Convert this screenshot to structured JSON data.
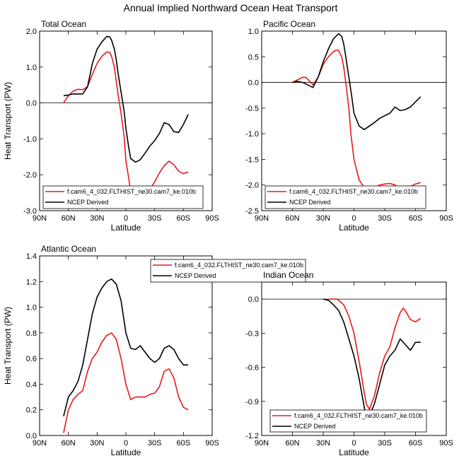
{
  "title": "Annual Implied Northward Ocean Heat Transport",
  "chart_data": [
    {
      "type": "line",
      "title": "Total Ocean",
      "xlabel": "Latitude",
      "ylabel": "Heat Transport (PW)",
      "x_ticks": [
        "90N",
        "60N",
        "30N",
        "0",
        "30S",
        "60S",
        "90S"
      ],
      "y_ticks": [
        "2.0",
        "1.0",
        "0.0",
        "-1.0",
        "-2.0",
        "-3.0"
      ],
      "xlim": [
        90,
        -90
      ],
      "ylim": [
        -3.0,
        2.0
      ],
      "series": [
        {
          "name": "f.cam6_4_032.FLTHIST_ne30.cam7_ke.010b",
          "color": "#e8191c",
          "x": [
            65,
            60,
            55,
            50,
            45,
            40,
            35,
            30,
            25,
            20,
            17,
            15,
            12,
            10,
            8,
            5,
            2,
            0,
            -5,
            -10,
            -13,
            -15,
            -20,
            -25,
            -30,
            -35,
            -40,
            -45,
            -50,
            -55,
            -60,
            -65
          ],
          "y": [
            0.0,
            0.2,
            0.33,
            0.38,
            0.37,
            0.45,
            0.8,
            1.1,
            1.3,
            1.42,
            1.41,
            1.3,
            1.0,
            0.6,
            0.2,
            -0.3,
            -0.9,
            -1.6,
            -2.45,
            -2.76,
            -2.74,
            -2.7,
            -2.55,
            -2.4,
            -2.2,
            -1.95,
            -1.75,
            -1.62,
            -1.72,
            -1.9,
            -1.97,
            -1.92
          ]
        },
        {
          "name": "NCEP Derived",
          "color": "#000000",
          "x": [
            65,
            60,
            55,
            50,
            45,
            40,
            35,
            30,
            25,
            20,
            17,
            15,
            12,
            10,
            8,
            5,
            2,
            0,
            -3,
            -5,
            -10,
            -15,
            -20,
            -25,
            -30,
            -35,
            -40,
            -45,
            -50,
            -55,
            -60,
            -65
          ],
          "y": [
            0.2,
            0.22,
            0.25,
            0.25,
            0.25,
            0.45,
            1.1,
            1.5,
            1.7,
            1.85,
            1.84,
            1.75,
            1.5,
            1.2,
            0.8,
            0.3,
            -0.2,
            -0.7,
            -1.25,
            -1.55,
            -1.65,
            -1.58,
            -1.4,
            -1.2,
            -1.05,
            -0.85,
            -0.55,
            -0.6,
            -0.8,
            -0.82,
            -0.6,
            -0.32
          ]
        }
      ]
    },
    {
      "type": "line",
      "title": "Pacific Ocean",
      "xlabel": "Latitude",
      "ylabel": "",
      "x_ticks": [
        "90N",
        "60N",
        "30N",
        "0",
        "30S",
        "60S",
        "90S"
      ],
      "y_ticks": [
        "1.0",
        "0.5",
        "0.0",
        "-0.5",
        "-1.0",
        "-1.5",
        "-2.0",
        "-2.5"
      ],
      "xlim": [
        90,
        -90
      ],
      "ylim": [
        -2.5,
        1.0
      ],
      "series": [
        {
          "name": "f.cam6_4_032.FLTHIST_ne30.cam7_ke.010b",
          "color": "#e8191c",
          "x": [
            60,
            55,
            50,
            47,
            45,
            42,
            40,
            35,
            30,
            25,
            20,
            17,
            15,
            12,
            10,
            8,
            5,
            3,
            0,
            -5,
            -10,
            -15,
            -20,
            -25,
            -30,
            -35,
            -40,
            -45,
            -50,
            -55,
            -60,
            -65
          ],
          "y": [
            0.0,
            0.05,
            0.1,
            0.1,
            0.06,
            0.0,
            -0.05,
            0.1,
            0.35,
            0.5,
            0.6,
            0.63,
            0.62,
            0.5,
            0.3,
            0.0,
            -0.5,
            -1.0,
            -1.5,
            -1.9,
            -2.05,
            -2.1,
            -2.05,
            -2.0,
            -1.98,
            -1.97,
            -2.0,
            -2.08,
            -2.1,
            -2.03,
            -1.98,
            -1.95
          ]
        },
        {
          "name": "NCEP Derived",
          "color": "#000000",
          "x": [
            60,
            55,
            50,
            45,
            40,
            35,
            30,
            25,
            20,
            15,
            12,
            10,
            8,
            5,
            2,
            0,
            -5,
            -10,
            -15,
            -20,
            -25,
            -30,
            -35,
            -40,
            -45,
            -50,
            -55,
            -60,
            -65
          ],
          "y": [
            0.0,
            0.02,
            0.0,
            -0.05,
            -0.1,
            0.1,
            0.4,
            0.65,
            0.85,
            0.95,
            0.9,
            0.75,
            0.5,
            0.1,
            -0.3,
            -0.6,
            -0.85,
            -0.92,
            -0.85,
            -0.78,
            -0.7,
            -0.65,
            -0.6,
            -0.48,
            -0.55,
            -0.53,
            -0.48,
            -0.38,
            -0.28
          ]
        }
      ]
    },
    {
      "type": "line",
      "title": "Atlantic Ocean",
      "xlabel": "Latitude",
      "ylabel": "Heat Transport (PW)",
      "x_ticks": [
        "90N",
        "60N",
        "30N",
        "0",
        "30S",
        "60S",
        "90S"
      ],
      "y_ticks": [
        "1.4",
        "1.2",
        "1.0",
        "0.8",
        "0.6",
        "0.4",
        "0.2",
        "0.0"
      ],
      "xlim": [
        90,
        -90
      ],
      "ylim": [
        0.0,
        1.4
      ],
      "series": [
        {
          "name": "f.cam6_4_032.FLTHIST_ne30.cam7_ke.010b",
          "color": "#e8191c",
          "x": [
            65,
            60,
            55,
            50,
            45,
            40,
            35,
            30,
            25,
            20,
            15,
            10,
            5,
            0,
            -5,
            -10,
            -15,
            -20,
            -25,
            -30,
            -35,
            -40,
            -45,
            -50,
            -55,
            -60,
            -65
          ],
          "y": [
            0.02,
            0.2,
            0.28,
            0.32,
            0.35,
            0.5,
            0.6,
            0.65,
            0.73,
            0.78,
            0.8,
            0.75,
            0.6,
            0.4,
            0.28,
            0.3,
            0.3,
            0.3,
            0.32,
            0.33,
            0.38,
            0.5,
            0.52,
            0.45,
            0.3,
            0.22,
            0.2
          ]
        },
        {
          "name": "NCEP Derived",
          "color": "#000000",
          "x": [
            65,
            60,
            55,
            50,
            45,
            40,
            35,
            30,
            25,
            20,
            15,
            10,
            5,
            2,
            0,
            -5,
            -10,
            -15,
            -20,
            -25,
            -30,
            -35,
            -40,
            -45,
            -50,
            -55,
            -60,
            -65
          ],
          "y": [
            0.15,
            0.3,
            0.35,
            0.42,
            0.55,
            0.75,
            0.95,
            1.08,
            1.15,
            1.2,
            1.22,
            1.18,
            1.05,
            0.9,
            0.8,
            0.68,
            0.67,
            0.7,
            0.65,
            0.6,
            0.57,
            0.6,
            0.68,
            0.7,
            0.67,
            0.6,
            0.55,
            0.55
          ]
        }
      ]
    },
    {
      "type": "line",
      "title": "Indian Ocean",
      "xlabel": "Latitude",
      "ylabel": "",
      "x_ticks": [
        "90N",
        "60N",
        "30N",
        "0",
        "30S",
        "60S",
        "90S"
      ],
      "y_ticks": [
        "0.0",
        "-0.3",
        "-0.6",
        "-0.9",
        "-1.2"
      ],
      "xlim": [
        90,
        -90
      ],
      "ylim": [
        -1.2,
        0.15
      ],
      "series": [
        {
          "name": "f.cam6_4_032.FLTHIST_ne30.cam7_ke.010b",
          "color": "#e8191c",
          "x": [
            25,
            20,
            17,
            15,
            10,
            5,
            0,
            -5,
            -10,
            -12,
            -15,
            -20,
            -25,
            -30,
            -35,
            -40,
            -45,
            -48,
            -50,
            -55,
            -60,
            -65
          ],
          "y": [
            0.0,
            0.0,
            0.0,
            -0.01,
            -0.05,
            -0.15,
            -0.3,
            -0.55,
            -0.82,
            -0.92,
            -0.97,
            -0.85,
            -0.65,
            -0.5,
            -0.42,
            -0.25,
            -0.12,
            -0.08,
            -0.1,
            -0.18,
            -0.2,
            -0.17
          ]
        },
        {
          "name": "NCEP Derived",
          "color": "#000000",
          "x": [
            30,
            25,
            20,
            15,
            10,
            5,
            0,
            -5,
            -10,
            -12,
            -15,
            -20,
            -25,
            -30,
            -35,
            -40,
            -45,
            -50,
            -55,
            -60,
            -65
          ],
          "y": [
            0.0,
            -0.01,
            -0.05,
            -0.1,
            -0.2,
            -0.35,
            -0.5,
            -0.7,
            -0.95,
            -1.05,
            -1.03,
            -0.92,
            -0.75,
            -0.58,
            -0.5,
            -0.45,
            -0.35,
            -0.4,
            -0.45,
            -0.38,
            -0.38
          ]
        }
      ]
    }
  ]
}
